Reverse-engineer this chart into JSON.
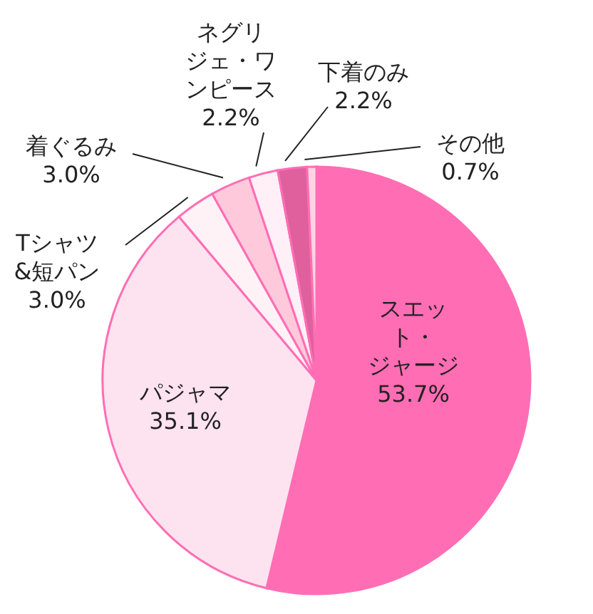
{
  "chart_data": {
    "type": "pie",
    "categories": [
      "スエット・ジャージ",
      "パジャマ",
      "Tシャツ&短パン",
      "着ぐるみ",
      "ネグリジェ・ワンピース",
      "下着のみ",
      "その他"
    ],
    "values": [
      53.7,
      35.1,
      3.0,
      3.0,
      2.2,
      2.2,
      0.7
    ],
    "colors": [
      "#ff6eb4",
      "#fde3ef",
      "#fff2f7",
      "#ffc9dc",
      "#fff0f7",
      "#e0609e",
      "#ffd3e3"
    ],
    "value_labels": [
      "53.7%",
      "35.1%",
      "3.0%",
      "3.0%",
      "2.2%",
      "2.2%",
      "0.7%"
    ]
  }
}
